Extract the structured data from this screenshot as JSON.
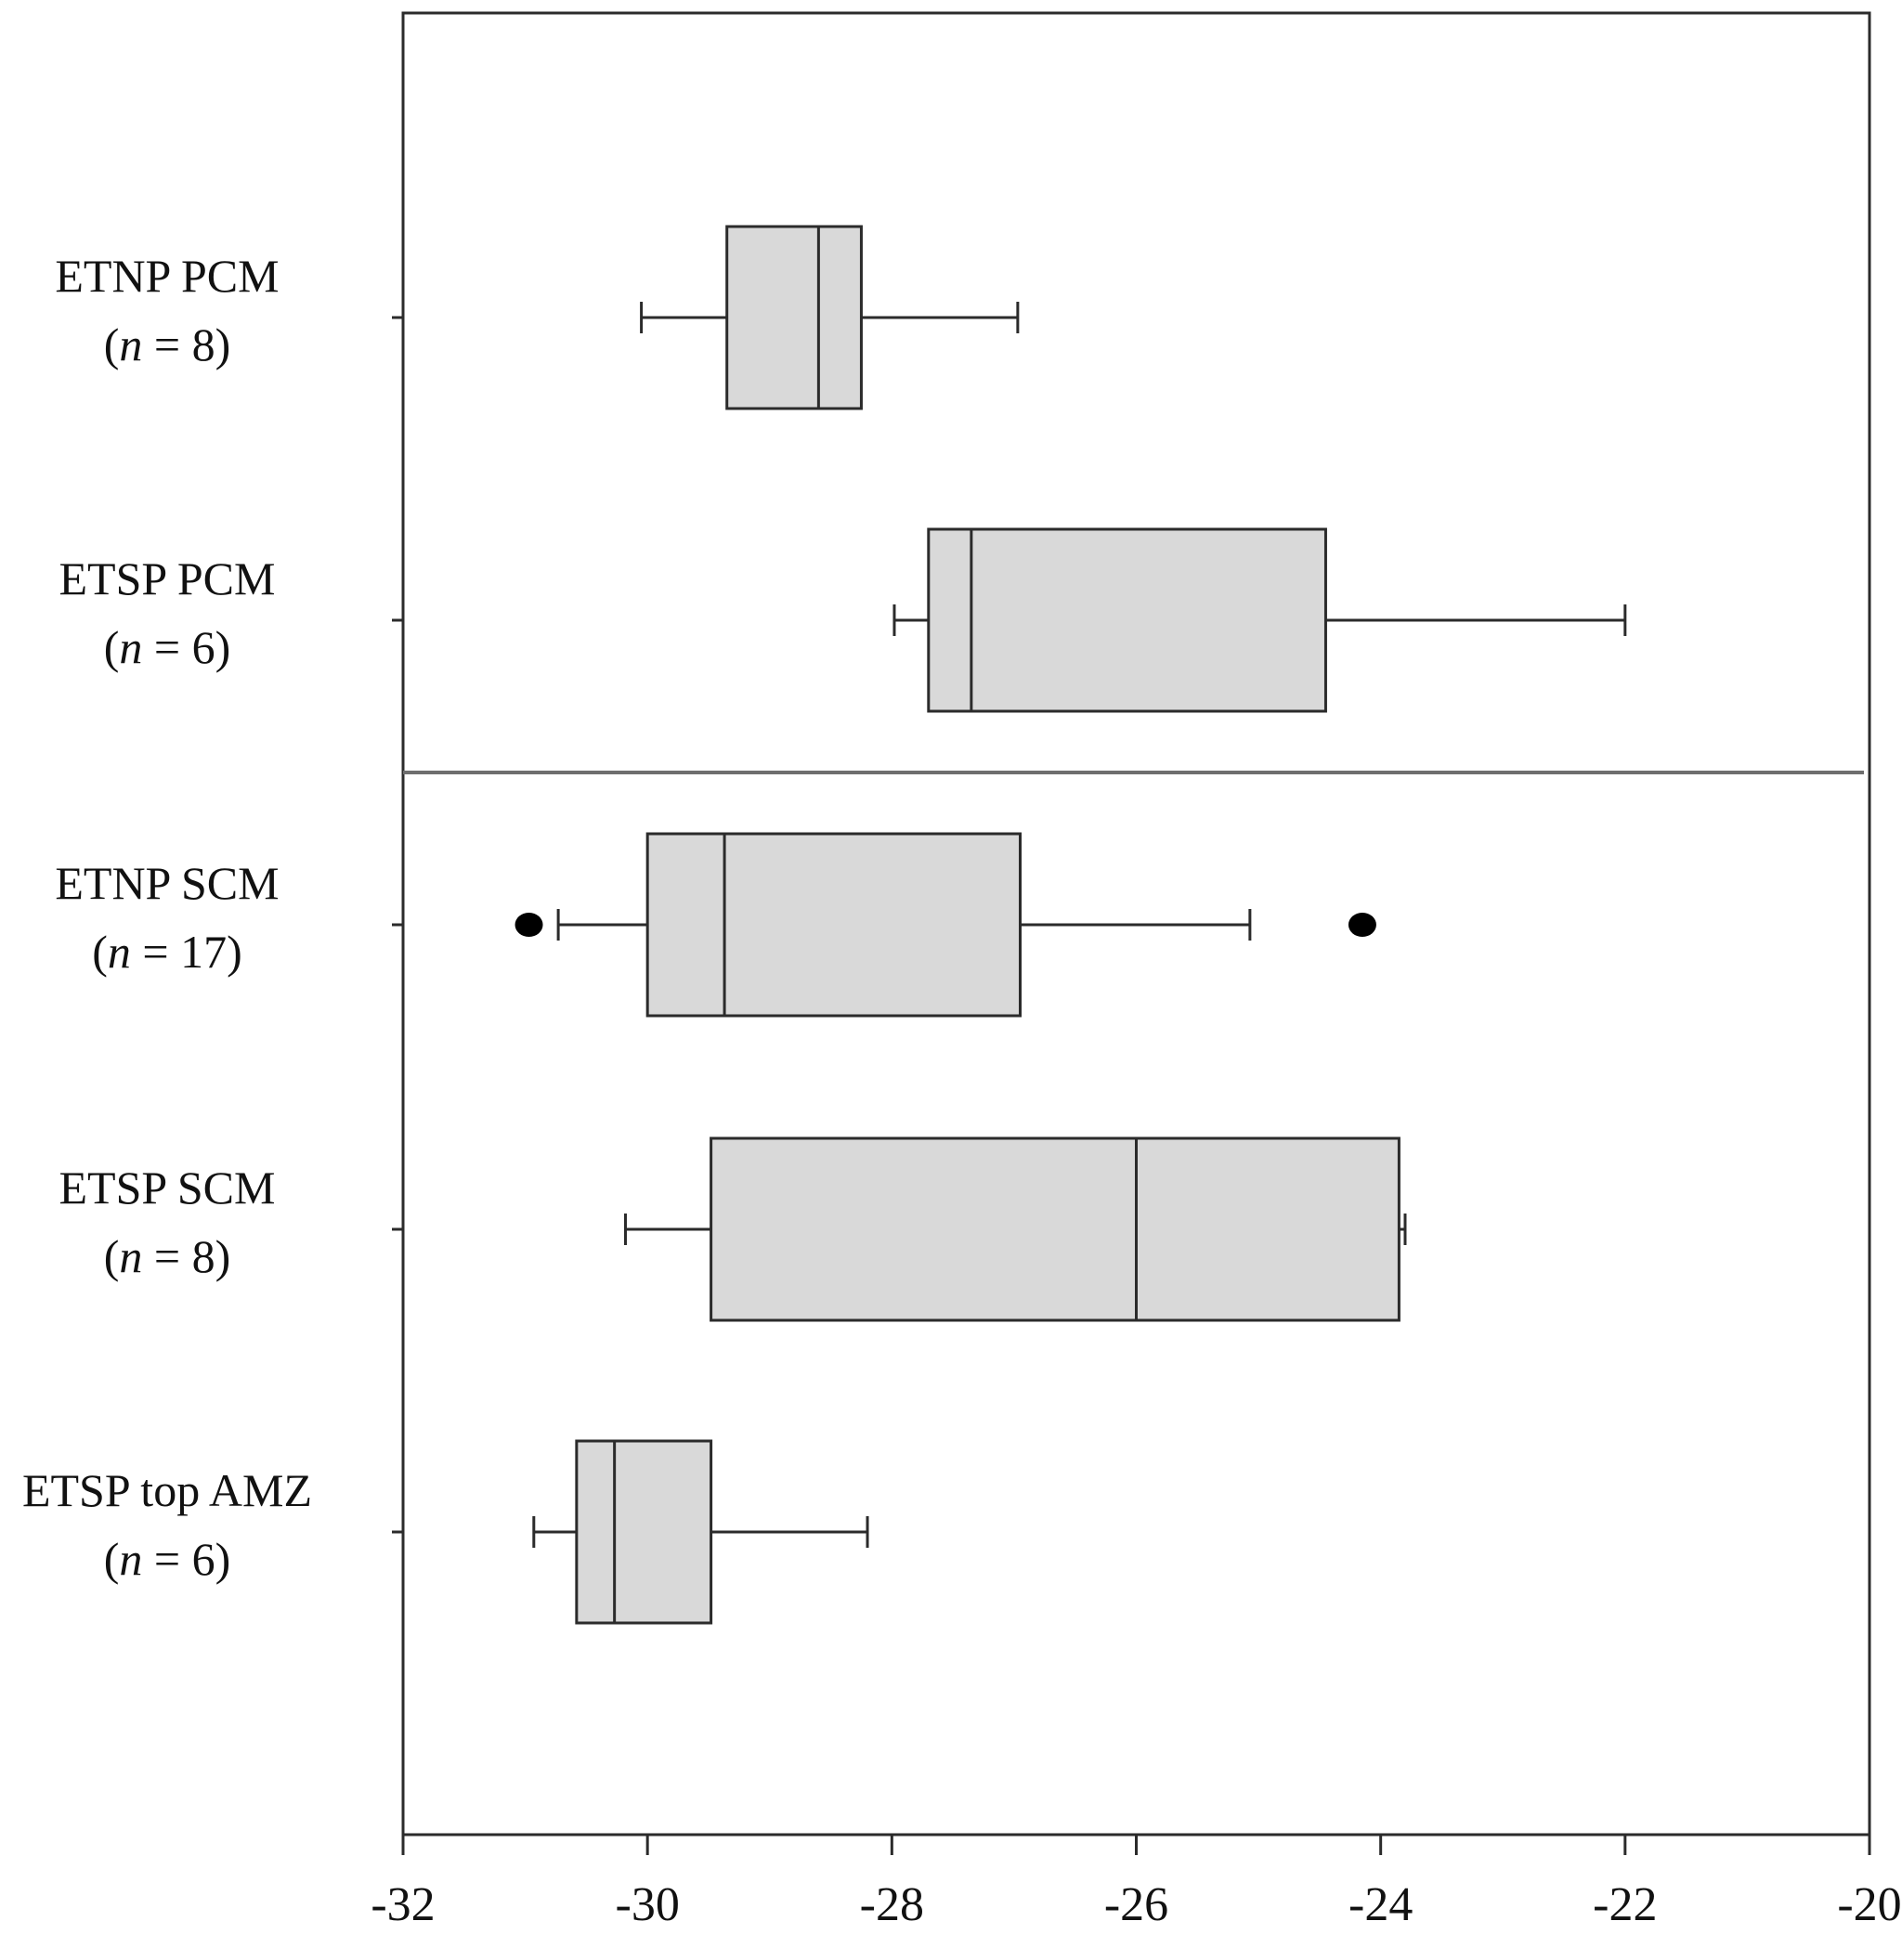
{
  "chart_data": {
    "type": "boxplot",
    "orientation": "horizontal",
    "xlim": [
      -32,
      -20
    ],
    "xticks": [
      "-32",
      "-30",
      "-28",
      "-26",
      "-24",
      "-22",
      "-20"
    ],
    "xtick_values": [
      -32,
      -30,
      -28,
      -26,
      -24,
      -22,
      -20
    ],
    "groups": [
      {
        "label": "ETNP PCM",
        "n_label": "= 8",
        "min": -30.05,
        "q1": -29.35,
        "median": -28.6,
        "q3": -28.25,
        "max": -26.97,
        "outliers": []
      },
      {
        "label": "ETSP PCM",
        "n_label": "= 6",
        "min": -27.98,
        "q1": -27.7,
        "median": -27.35,
        "q3": -24.45,
        "max": -22.0,
        "outliers": []
      },
      {
        "label": "ETNP SCM",
        "n_label": "= 17",
        "min": -30.73,
        "q1": -30.0,
        "median": -29.37,
        "q3": -26.95,
        "max": -25.07,
        "outliers": [
          -30.97,
          -24.15
        ]
      },
      {
        "label": "ETSP SCM",
        "n_label": "= 8",
        "min": -30.18,
        "q1": -29.48,
        "median": -26.0,
        "q3": -23.85,
        "max": -23.8,
        "outliers": []
      },
      {
        "label": "ETSP top AMZ",
        "n_label": "= 6",
        "min": -30.93,
        "q1": -30.58,
        "median": -30.27,
        "q3": -29.48,
        "max": -28.2,
        "outliers": []
      }
    ],
    "panels": [
      {
        "groups": [
          "ETNP PCM",
          "ETSP PCM"
        ]
      },
      {
        "groups": [
          "ETNP SCM",
          "ETSP SCM",
          "ETSP top AMZ"
        ]
      }
    ],
    "n_symbol": "n",
    "box_fill": "#d9d9d9",
    "line_color": "#2b2b2b",
    "outlier_color": "#000000",
    "grid": false,
    "legend": "none"
  }
}
